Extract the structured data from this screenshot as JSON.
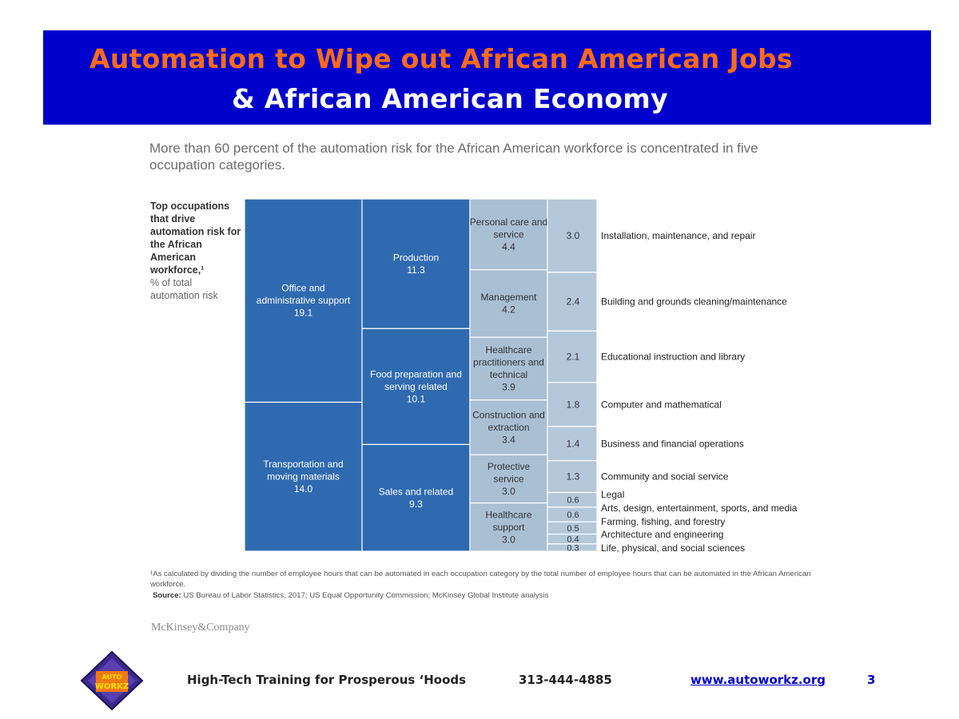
{
  "title": {
    "line1": "Automation to Wipe out African American Jobs",
    "line2": "& African American Economy"
  },
  "chart_data": {
    "type": "treemap",
    "subtitle": "More than 60 percent of the automation risk for the African American workforce is concentrated in five occupation categories.",
    "side_label": {
      "bold": "Top occupations that drive automation risk for the African American workforce,¹",
      "rest": "% of total automation risk"
    },
    "series": [
      {
        "name": "Office and administrative support",
        "value": 19.1
      },
      {
        "name": "Transportation and moving materials",
        "value": 14.0
      },
      {
        "name": "Production",
        "value": 11.3
      },
      {
        "name": "Food preparation and serving related",
        "value": 10.1
      },
      {
        "name": "Sales and related",
        "value": 9.3
      },
      {
        "name": "Personal care and service",
        "value": 4.4
      },
      {
        "name": "Management",
        "value": 4.2
      },
      {
        "name": "Healthcare practitioners and technical",
        "value": 3.9
      },
      {
        "name": "Construction and extraction",
        "value": 3.4
      },
      {
        "name": "Protective service",
        "value": 3.0
      },
      {
        "name": "Healthcare support",
        "value": 3.0
      },
      {
        "name": "Installation, maintenance, and repair",
        "value": 3.0
      },
      {
        "name": "Building and grounds cleaning/maintenance",
        "value": 2.4
      },
      {
        "name": "Educational instruction and library",
        "value": 2.1
      },
      {
        "name": "Computer and mathematical",
        "value": 1.8
      },
      {
        "name": "Business and financial operations",
        "value": 1.4
      },
      {
        "name": "Community and social service",
        "value": 1.3
      },
      {
        "name": "Legal",
        "value": 0.6
      },
      {
        "name": "Arts, design, entertainment, sports, and media",
        "value": 0.6
      },
      {
        "name": "Farming, fishing, and forestry",
        "value": 0.5
      },
      {
        "name": "Architecture and engineering",
        "value": 0.4
      },
      {
        "name": "Life, physical, and social sciences",
        "value": 0.3
      }
    ],
    "colors": {
      "dark": "#2f6ab0",
      "medium": "#1f5fa6",
      "light": "#a9bfd4",
      "lighter": "#b4c8da"
    }
  },
  "footnote": "¹As calculated by dividing the number of employee hours that can be automated in each occupation category by the total number of employee hours that can be automated in the African American workforce.",
  "source": {
    "label": "Source:",
    "text": "US Bureau of Labor Statistics, 2017; US Equal Opportunity Commission; McKinsey Global Institute analysis"
  },
  "brand": "McKinsey&Company",
  "logo_text": "AUTO WORKZ",
  "footer": {
    "tagline": "High-Tech Training for Prosperous ‘Hoods",
    "phone": "313-444-4885",
    "website": "www.autoworkz.org",
    "page": "3"
  }
}
